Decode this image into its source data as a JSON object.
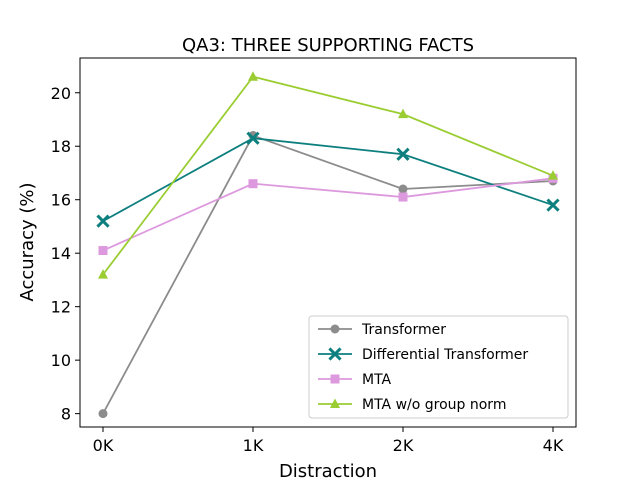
{
  "chart_data": {
    "type": "line",
    "title": "QA3: THREE SUPPORTING FACTS",
    "xlabel": "Distraction",
    "ylabel": "Accuracy (%)",
    "categories": [
      "0K",
      "1K",
      "2K",
      "4K"
    ],
    "ylim": [
      7.5,
      21.3
    ],
    "yticks": [
      8,
      10,
      12,
      14,
      16,
      18,
      20
    ],
    "grid": false,
    "legend_position": "lower-right",
    "series": [
      {
        "name": "Transformer",
        "color": "#8c8c8c",
        "marker": "circle",
        "values": [
          8.0,
          18.4,
          16.4,
          16.7
        ]
      },
      {
        "name": "Differential Transformer",
        "color": "#0e7f7f",
        "marker": "x",
        "values": [
          15.2,
          18.3,
          17.7,
          15.8
        ]
      },
      {
        "name": "MTA",
        "color": "#dd99dd",
        "marker": "square",
        "values": [
          14.1,
          16.6,
          16.1,
          16.8
        ]
      },
      {
        "name": "MTA w/o group norm",
        "color": "#9acd32",
        "marker": "triangle",
        "values": [
          13.2,
          20.6,
          19.2,
          16.9
        ]
      }
    ]
  }
}
